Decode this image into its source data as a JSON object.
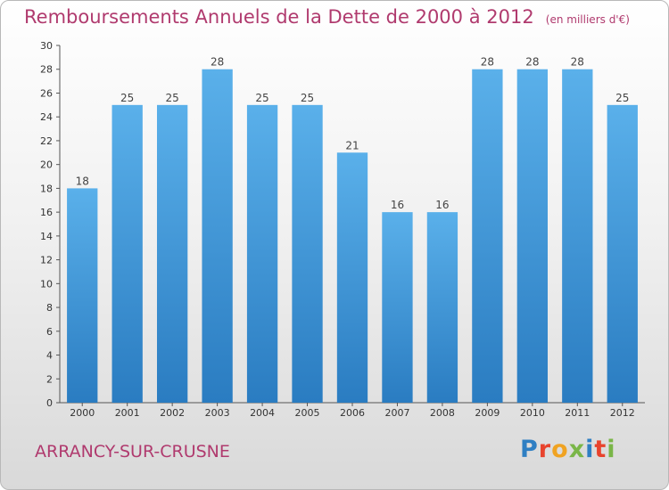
{
  "title": "Remboursements Annuels de la Dette de 2000 à 2012",
  "unit_label": "(en milliers d'€)",
  "commune": "ARRANCY-SUR-CRUSNE",
  "logo_text": "Proxiti",
  "colors": {
    "title": "#b03a6e",
    "bar_top": "#5ab0ea",
    "bar_bottom": "#2a7cc1"
  },
  "chart_data": {
    "type": "bar",
    "title": "Remboursements Annuels de la Dette de 2000 à 2012",
    "xlabel": "",
    "ylabel": "",
    "categories": [
      "2000",
      "2001",
      "2002",
      "2003",
      "2004",
      "2005",
      "2006",
      "2007",
      "2008",
      "2009",
      "2010",
      "2011",
      "2012"
    ],
    "values": [
      18,
      25,
      25,
      28,
      25,
      25,
      21,
      16,
      16,
      28,
      28,
      28,
      25
    ],
    "ylim": [
      0,
      30
    ],
    "yticks": [
      0,
      2,
      4,
      6,
      8,
      10,
      12,
      14,
      16,
      18,
      20,
      22,
      24,
      26,
      28,
      30
    ],
    "grid": false,
    "data_labels": true
  }
}
